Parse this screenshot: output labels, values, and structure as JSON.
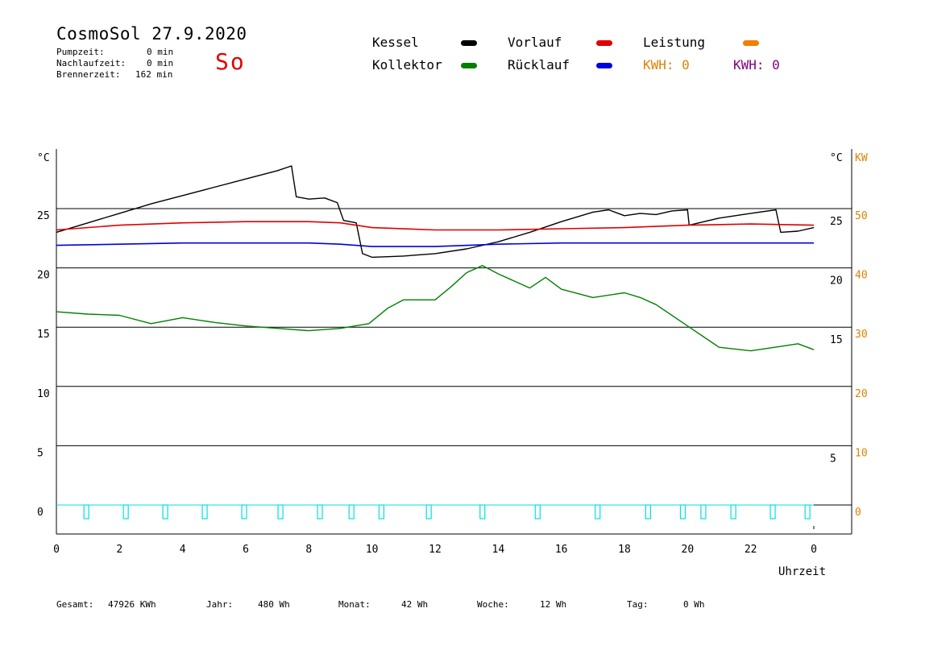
{
  "header": {
    "title": "CosmoSol 27.9.2020",
    "day": "So",
    "pumpzeit_label": "Pumpzeit:",
    "pumpzeit_value": "0 min",
    "nachlaufzeit_label": "Nachlaufzeit:",
    "nachlaufzeit_value": "0 min",
    "brennerzeit_label": "Brennerzeit:",
    "brennerzeit_value": "162 min"
  },
  "legend": {
    "kessel": "Kessel",
    "kollektor": "Kollektor",
    "vorlauf": "Vorlauf",
    "ruecklauf": "Rücklauf",
    "leistung": "Leistung",
    "kwh1": "KWH: 0",
    "kwh2": "KWH: 0",
    "colors": {
      "kessel": "#000000",
      "kollektor": "#008000",
      "vorlauf": "#e00000",
      "ruecklauf": "#0000e0",
      "leistung": "#f08000",
      "kwh2": "#800080",
      "pump": "#00e0e0"
    }
  },
  "footer": {
    "gesamt_label": "Gesamt:",
    "gesamt_value": "47926 KWh",
    "jahr_label": "Jahr:",
    "jahr_value": "480 Wh",
    "monat_label": "Monat:",
    "monat_value": "42 Wh",
    "woche_label": "Woche:",
    "woche_value": "12 Wh",
    "tag_label": "Tag:",
    "tag_value": "0 Wh"
  },
  "chart_data": {
    "type": "line",
    "xlabel": "Uhrzeit",
    "ylabel": "°C",
    "ylabel_right": "°C",
    "ylabel_right2": "KW",
    "xlim": [
      0,
      24
    ],
    "ylim": [
      -2,
      30
    ],
    "x_tick_labels": [
      "0",
      "2",
      "4",
      "6",
      "8",
      "10",
      "12",
      "14",
      "16",
      "18",
      "20",
      "22",
      "0"
    ],
    "y_ticks": [
      0,
      5,
      10,
      15,
      20,
      25
    ],
    "y_tick_labels_right": [
      "5",
      "15",
      "20",
      "25"
    ],
    "y_tick_labels_kw": [
      "0",
      "10",
      "20",
      "30",
      "40",
      "50"
    ],
    "grid": "horizontal",
    "series": [
      {
        "name": "Kessel",
        "x": [
          0,
          1,
          2,
          3,
          4,
          5,
          6,
          7,
          7.45,
          7.6,
          8,
          8.5,
          8.9,
          9.1,
          9.5,
          9.7,
          10,
          11,
          12,
          13,
          14,
          15,
          16,
          17,
          17.5,
          18,
          18.5,
          19,
          19.5,
          20,
          20.05,
          21,
          22,
          22.8,
          22.95,
          23.5,
          24
        ],
        "y": [
          23.0,
          23.8,
          24.6,
          25.4,
          26.1,
          26.8,
          27.5,
          28.2,
          28.6,
          26.0,
          25.8,
          25.9,
          25.5,
          24.0,
          23.8,
          21.2,
          20.9,
          21.0,
          21.2,
          21.6,
          22.2,
          23.0,
          23.9,
          24.7,
          24.9,
          24.4,
          24.6,
          24.5,
          24.8,
          24.9,
          23.6,
          24.2,
          24.6,
          24.9,
          23.0,
          23.1,
          23.4
        ]
      },
      {
        "name": "Kollektor",
        "x": [
          0,
          1,
          2,
          3,
          4,
          5,
          6,
          7,
          8,
          9,
          9.9,
          10.5,
          11,
          12,
          12.5,
          13,
          13.5,
          14,
          15,
          15.5,
          16,
          17,
          18,
          18.5,
          19,
          20,
          21,
          22,
          23,
          23.5,
          24
        ],
        "y": [
          16.3,
          16.1,
          16.0,
          15.3,
          15.8,
          15.4,
          15.1,
          14.9,
          14.7,
          14.9,
          15.3,
          16.6,
          17.3,
          17.3,
          18.4,
          19.6,
          20.2,
          19.5,
          18.3,
          19.2,
          18.2,
          17.5,
          17.9,
          17.5,
          16.9,
          15.1,
          13.3,
          13.0,
          13.4,
          13.6,
          13.1
        ]
      },
      {
        "name": "Vorlauf",
        "x": [
          0,
          2,
          4,
          6,
          8,
          9,
          10,
          12,
          14,
          16,
          18,
          20,
          22,
          24
        ],
        "y": [
          23.2,
          23.6,
          23.8,
          23.9,
          23.9,
          23.8,
          23.4,
          23.2,
          23.2,
          23.3,
          23.4,
          23.6,
          23.7,
          23.6
        ]
      },
      {
        "name": "Rücklauf",
        "x": [
          0,
          2,
          4,
          6,
          8,
          9,
          10,
          12,
          14,
          16,
          18,
          20,
          22,
          24
        ],
        "y": [
          21.9,
          22.0,
          22.1,
          22.1,
          22.1,
          22.0,
          21.8,
          21.8,
          22.0,
          22.1,
          22.1,
          22.1,
          22.1,
          22.1
        ]
      },
      {
        "name": "Leistung",
        "x": [
          0,
          24
        ],
        "y": [
          0,
          0
        ]
      }
    ],
    "pump_pulses_hours": [
      0.95,
      2.2,
      3.45,
      4.7,
      5.95,
      7.1,
      8.35,
      9.35,
      10.3,
      11.8,
      13.5,
      15.25,
      17.15,
      18.75,
      19.85,
      20.5,
      21.45,
      22.7,
      23.8
    ]
  }
}
